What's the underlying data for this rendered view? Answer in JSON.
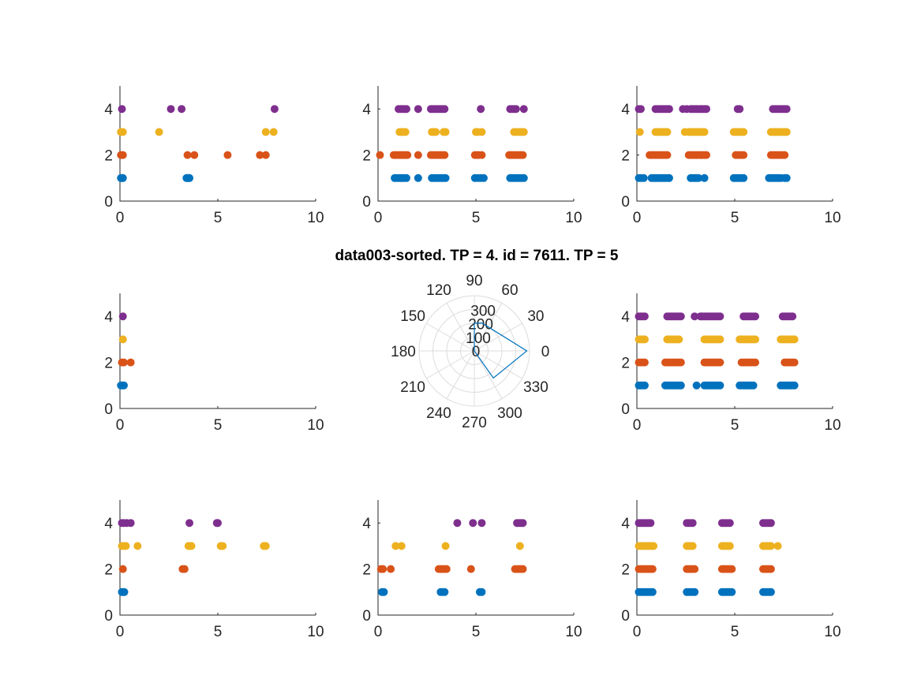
{
  "figure": {
    "title": "data003-sorted. TP = 4. id = 7611. TP = 5"
  },
  "colors": {
    "series1": "#0072BD",
    "series2": "#D95319",
    "series3": "#EDB120",
    "series4": "#7E2F8E",
    "polar_line": "#0072BD"
  },
  "chart_data": [
    {
      "type": "scatter",
      "position": "top-left",
      "xlim": [
        0,
        10
      ],
      "ylim": [
        0,
        5
      ],
      "xticks": [
        "0",
        "5",
        "10"
      ],
      "yticks": [
        "0",
        "2",
        "4"
      ],
      "series": [
        {
          "y": 1,
          "x": [
            0.05,
            0.1,
            0.15,
            3.4,
            3.45,
            3.5,
            3.55
          ]
        },
        {
          "y": 2,
          "x": [
            0.05,
            0.15,
            3.45,
            3.8,
            5.5,
            7.15,
            7.45
          ]
        },
        {
          "y": 3,
          "x": [
            0.05,
            0.15,
            2.0,
            7.45,
            7.85
          ]
        },
        {
          "y": 4,
          "x": [
            0.1,
            2.6,
            3.15,
            7.9
          ]
        }
      ]
    },
    {
      "type": "scatter",
      "position": "top-middle",
      "xlim": [
        0,
        10
      ],
      "ylim": [
        0,
        5
      ],
      "xticks": [
        "0",
        "5",
        "10"
      ],
      "yticks": [
        "0",
        "2",
        "4"
      ],
      "series": [
        {
          "y": 1,
          "x": [
            0.85,
            0.95,
            1.05,
            1.15,
            1.25,
            1.35,
            1.45,
            2.05,
            2.75,
            2.85,
            2.95,
            3.05,
            3.15,
            3.25,
            3.35,
            3.45,
            4.95,
            5.1,
            5.25,
            5.4,
            6.75,
            6.85,
            6.95,
            7.05,
            7.15,
            7.25,
            7.35,
            7.45
          ]
        },
        {
          "y": 2,
          "x": [
            0.1,
            0.8,
            0.9,
            1.0,
            1.1,
            1.2,
            1.3,
            1.4,
            1.5,
            2.05,
            2.7,
            2.8,
            2.9,
            3.0,
            3.1,
            3.2,
            3.3,
            3.4,
            4.95,
            5.05,
            5.15,
            5.3,
            6.7,
            6.8,
            6.9,
            7.0,
            7.1,
            7.2,
            7.3,
            7.4
          ]
        },
        {
          "y": 3,
          "x": [
            1.1,
            1.2,
            1.3,
            1.4,
            2.75,
            2.85,
            2.95,
            3.35,
            3.45,
            5.0,
            5.1,
            5.3,
            6.95,
            7.05,
            7.15,
            7.25,
            7.35,
            7.45
          ]
        },
        {
          "y": 4,
          "x": [
            1.05,
            1.15,
            1.25,
            1.35,
            1.45,
            2.05,
            2.7,
            2.8,
            2.9,
            3.0,
            3.1,
            3.2,
            3.3,
            3.4,
            5.25,
            6.75,
            6.85,
            6.95,
            7.05,
            7.45
          ]
        }
      ]
    },
    {
      "type": "scatter",
      "position": "top-right",
      "xlim": [
        0,
        10
      ],
      "ylim": [
        0,
        5
      ],
      "xticks": [
        "0",
        "5",
        "10"
      ],
      "yticks": [
        "0",
        "2",
        "4"
      ],
      "series": [
        {
          "y": 1,
          "x": [
            0.1,
            0.2,
            0.35,
            0.75,
            0.85,
            0.95,
            1.05,
            1.15,
            1.25,
            1.35,
            1.45,
            1.55,
            1.65,
            2.75,
            2.85,
            2.95,
            3.05,
            3.15,
            3.45,
            4.95,
            5.05,
            5.15,
            5.25,
            5.35,
            5.45,
            6.75,
            6.85,
            6.95,
            7.05,
            7.15,
            7.25,
            7.35,
            7.55,
            7.65
          ]
        },
        {
          "y": 2,
          "x": [
            0.65,
            0.75,
            0.85,
            0.95,
            1.05,
            1.15,
            1.25,
            1.35,
            1.45,
            1.55,
            2.65,
            2.75,
            2.85,
            2.95,
            3.05,
            3.15,
            3.25,
            3.35,
            3.45,
            3.55,
            5.05,
            5.15,
            5.25,
            5.35,
            5.45,
            6.85,
            6.95,
            7.05,
            7.15,
            7.25,
            7.35,
            7.45,
            7.55
          ]
        },
        {
          "y": 3,
          "x": [
            0.15,
            0.95,
            1.05,
            1.15,
            1.25,
            1.35,
            1.45,
            1.55,
            2.45,
            2.65,
            2.75,
            2.85,
            2.95,
            3.05,
            3.15,
            3.25,
            3.35,
            3.45,
            4.95,
            5.05,
            5.15,
            5.25,
            5.35,
            5.45,
            6.85,
            6.95,
            7.05,
            7.15,
            7.25,
            7.35,
            7.45,
            7.55,
            7.65
          ]
        },
        {
          "y": 4,
          "x": [
            0.1,
            0.2,
            0.95,
            1.05,
            1.15,
            1.25,
            1.35,
            1.45,
            1.55,
            1.65,
            2.35,
            2.55,
            2.75,
            2.85,
            2.95,
            3.05,
            3.15,
            3.25,
            3.35,
            3.45,
            3.55,
            5.15,
            5.25,
            6.95,
            7.05,
            7.15,
            7.25,
            7.35,
            7.45,
            7.55,
            7.65
          ]
        }
      ]
    },
    {
      "type": "scatter",
      "position": "middle-left",
      "xlim": [
        0,
        10
      ],
      "ylim": [
        0,
        5
      ],
      "xticks": [
        "0",
        "5",
        "10"
      ],
      "yticks": [
        "0",
        "2",
        "4"
      ],
      "series": [
        {
          "y": 1,
          "x": [
            0.05,
            0.12,
            0.2
          ]
        },
        {
          "y": 2,
          "x": [
            0.1,
            0.2,
            0.55
          ]
        },
        {
          "y": 3,
          "x": [
            0.15
          ]
        },
        {
          "y": 4,
          "x": [
            0.15
          ]
        }
      ]
    },
    {
      "type": "polar",
      "position": "center",
      "rlim": [
        0,
        400
      ],
      "rticks": [
        "0",
        "100",
        "200",
        "300"
      ],
      "thetaticks": [
        "0",
        "30",
        "60",
        "90",
        "120",
        "150",
        "180",
        "210",
        "240",
        "270",
        "300",
        "330"
      ],
      "points": [
        {
          "theta": 0,
          "r": 0
        },
        {
          "theta": 90,
          "r": 200
        },
        {
          "theta": 75,
          "r": 210
        },
        {
          "theta": 0,
          "r": 380
        },
        {
          "theta": -55,
          "r": 240
        },
        {
          "theta": 0,
          "r": 0
        }
      ]
    },
    {
      "type": "scatter",
      "position": "middle-right",
      "xlim": [
        0,
        10
      ],
      "ylim": [
        0,
        5
      ],
      "xticks": [
        "0",
        "5",
        "10"
      ],
      "yticks": [
        "0",
        "2",
        "4"
      ],
      "series": [
        {
          "y": 1,
          "x": [
            0.1,
            0.2,
            0.3,
            0.4,
            1.45,
            1.55,
            1.65,
            1.75,
            1.85,
            1.95,
            2.05,
            2.15,
            2.25,
            3.05,
            3.45,
            3.55,
            3.65,
            3.75,
            3.85,
            3.95,
            4.05,
            4.15,
            4.25,
            5.25,
            5.35,
            5.45,
            5.55,
            5.65,
            5.75,
            5.85,
            5.95,
            7.35,
            7.45,
            7.55,
            7.65,
            7.75,
            7.85,
            7.95,
            8.05
          ]
        },
        {
          "y": 2,
          "x": [
            0.1,
            0.2,
            0.3,
            0.4,
            1.45,
            1.55,
            1.65,
            1.75,
            1.85,
            1.95,
            2.05,
            2.15,
            2.25,
            3.45,
            3.55,
            3.65,
            3.75,
            3.85,
            3.95,
            4.05,
            4.15,
            4.25,
            5.35,
            5.45,
            5.55,
            5.65,
            5.75,
            5.85,
            5.95,
            6.05,
            7.55,
            7.65,
            7.75,
            7.85,
            7.95,
            8.05
          ]
        },
        {
          "y": 3,
          "x": [
            0.1,
            0.2,
            0.3,
            0.4,
            1.55,
            1.65,
            1.75,
            1.85,
            1.95,
            2.05,
            2.15,
            3.45,
            3.55,
            3.65,
            3.75,
            3.85,
            3.95,
            4.05,
            4.15,
            4.25,
            5.25,
            5.35,
            5.45,
            5.55,
            5.65,
            5.75,
            5.85,
            5.95,
            6.05,
            7.35,
            7.45,
            7.55,
            7.65,
            7.75,
            7.85,
            7.95,
            8.05
          ]
        },
        {
          "y": 4,
          "x": [
            0.1,
            0.2,
            0.3,
            0.4,
            1.55,
            1.65,
            1.75,
            1.85,
            1.95,
            2.05,
            2.15,
            2.25,
            2.95,
            3.25,
            3.35,
            3.45,
            3.55,
            3.65,
            3.75,
            3.85,
            3.95,
            4.05,
            4.15,
            4.25,
            5.45,
            5.55,
            5.65,
            5.75,
            5.85,
            5.95,
            6.05,
            7.45,
            7.55,
            7.65,
            7.75,
            7.85,
            7.95
          ]
        }
      ]
    },
    {
      "type": "scatter",
      "position": "bottom-left",
      "xlim": [
        0,
        10
      ],
      "ylim": [
        0,
        5
      ],
      "xticks": [
        "0",
        "5",
        "10"
      ],
      "yticks": [
        "0",
        "2",
        "4"
      ],
      "series": [
        {
          "y": 1,
          "x": [
            0.1,
            0.15,
            0.22
          ]
        },
        {
          "y": 2,
          "x": [
            0.15,
            3.2,
            3.3
          ]
        },
        {
          "y": 3,
          "x": [
            0.1,
            0.2,
            0.3,
            0.9,
            3.5,
            3.55,
            3.65,
            5.15,
            5.25,
            7.35,
            7.45
          ]
        },
        {
          "y": 4,
          "x": [
            0.1,
            0.2,
            0.35,
            0.55,
            3.55,
            4.95,
            5.0
          ]
        }
      ]
    },
    {
      "type": "scatter",
      "position": "bottom-middle",
      "xlim": [
        0,
        10
      ],
      "ylim": [
        0,
        5
      ],
      "xticks": [
        "0",
        "5",
        "10"
      ],
      "yticks": [
        "0",
        "2",
        "4"
      ],
      "series": [
        {
          "y": 1,
          "x": [
            0.2,
            0.3,
            3.2,
            3.3,
            3.4,
            5.2,
            5.3
          ]
        },
        {
          "y": 2,
          "x": [
            0.15,
            0.25,
            0.65,
            3.1,
            3.2,
            3.3,
            3.4,
            3.5,
            4.75,
            7.0,
            7.1,
            7.2,
            7.3,
            7.4
          ]
        },
        {
          "y": 3,
          "x": [
            0.9,
            1.2,
            3.45,
            7.25
          ]
        },
        {
          "y": 4,
          "x": [
            4.05,
            4.85,
            5.3,
            7.1,
            7.2,
            7.3,
            7.4
          ]
        }
      ]
    },
    {
      "type": "scatter",
      "position": "bottom-right",
      "xlim": [
        0,
        10
      ],
      "ylim": [
        0,
        5
      ],
      "xticks": [
        "0",
        "5",
        "10"
      ],
      "yticks": [
        "0",
        "2",
        "4"
      ],
      "series": [
        {
          "y": 1,
          "x": [
            0.1,
            0.2,
            0.3,
            0.4,
            0.5,
            0.6,
            0.7,
            0.8,
            2.55,
            2.65,
            2.75,
            2.85,
            2.95,
            4.35,
            4.45,
            4.55,
            4.65,
            4.75,
            4.85,
            6.45,
            6.55,
            6.65,
            6.75,
            6.85
          ]
        },
        {
          "y": 2,
          "x": [
            0.1,
            0.2,
            0.3,
            0.4,
            0.5,
            0.6,
            0.7,
            0.8,
            2.55,
            2.65,
            2.75,
            2.85,
            2.95,
            4.35,
            4.45,
            4.55,
            4.65,
            4.75,
            4.85,
            6.45,
            6.55,
            6.65,
            6.75,
            6.85
          ]
        },
        {
          "y": 3,
          "x": [
            0.1,
            0.25,
            0.35,
            0.45,
            0.55,
            0.65,
            0.75,
            0.85,
            2.55,
            2.65,
            2.75,
            2.85,
            4.35,
            4.45,
            4.55,
            4.65,
            4.75,
            6.45,
            6.55,
            6.65,
            6.75,
            6.85,
            7.2
          ]
        },
        {
          "y": 4,
          "x": [
            0.1,
            0.2,
            0.3,
            0.4,
            0.5,
            0.6,
            0.7,
            2.55,
            2.65,
            2.75,
            2.85,
            4.35,
            4.45,
            4.55,
            4.65,
            4.75,
            6.45,
            6.55,
            6.65,
            6.75,
            6.85
          ]
        }
      ]
    }
  ]
}
